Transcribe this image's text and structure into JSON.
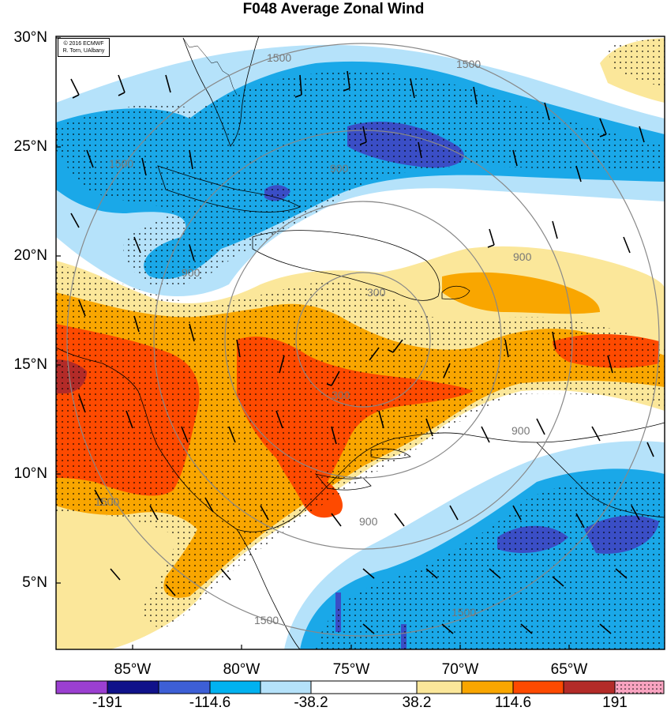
{
  "title": "F048 Average Zonal Wind",
  "credit": {
    "line1": "© 2016 ECMWF",
    "line2": "R. Torn, UAlbany"
  },
  "lat_labels": [
    "30°N",
    "25°N",
    "20°N",
    "15°N",
    "10°N",
    "5°N"
  ],
  "lon_labels": [
    "85°W",
    "80°W",
    "75°W",
    "70°W",
    "65°W"
  ],
  "contour_labels": [
    "1500",
    "1500",
    "1500",
    "900",
    "900",
    "900",
    "300",
    "300",
    "900",
    "1500",
    "900",
    "1500",
    "1500"
  ],
  "colorbar": {
    "labels": [
      "-191",
      "-114.6",
      "-38.2",
      "38.2",
      "114.6",
      "191"
    ],
    "colors": [
      "#9b3fd1",
      "#10128a",
      "#3d5fd6",
      "#00b2f0",
      "#b5e2fa",
      "#ffffff",
      "#fbe79a",
      "#f9a600",
      "#fe4a00",
      "#b32b28",
      "#f8a3c0"
    ]
  },
  "fill_colors": {
    "light_blue": "#b5e2fa",
    "blue": "#1aa8e8",
    "dark_blue": "#3a4ec6",
    "yellow": "#fbe79a",
    "orange": "#f9a600",
    "red": "#fe4a00",
    "dark_red": "#b32b28"
  }
}
